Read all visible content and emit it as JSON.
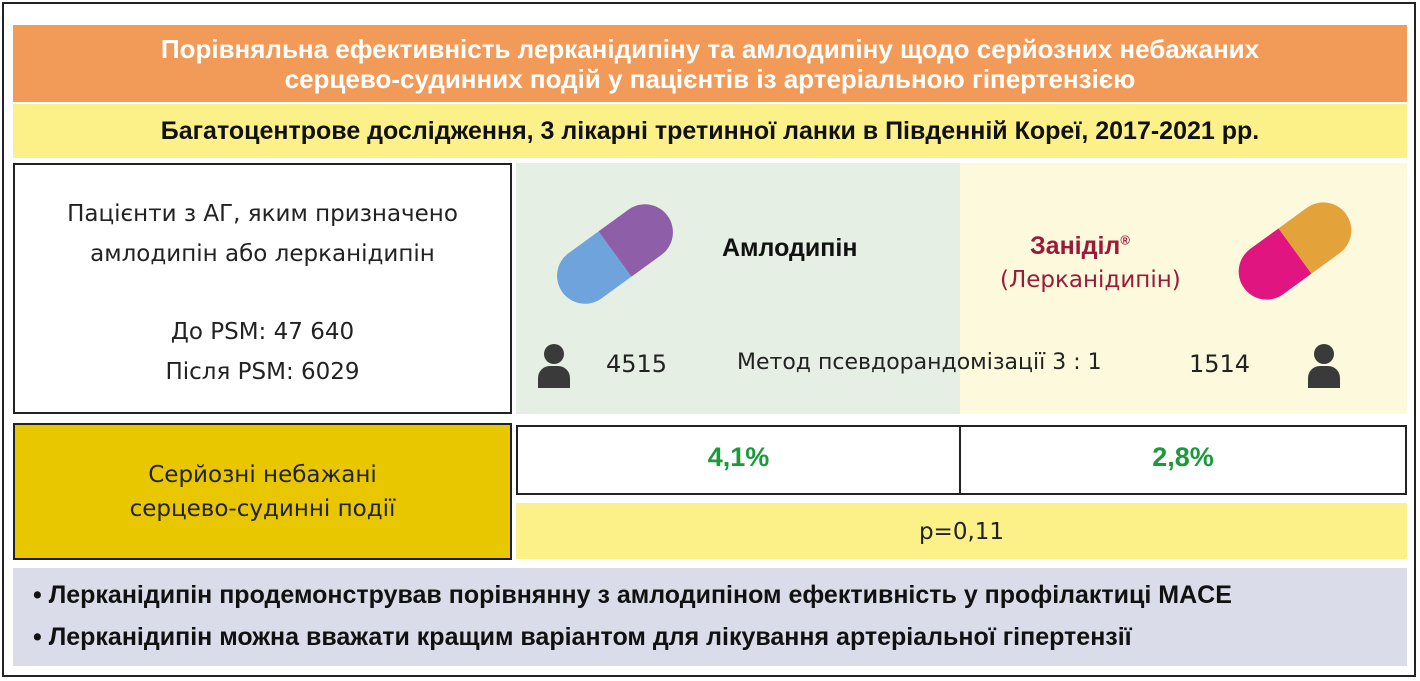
{
  "header": {
    "title_line1": "Порівняльна ефективність лерканідипіну та амлодипіну щодо серйозних небажаних",
    "title_line2": "серцево-судинних подій у пацієнтів із артеріальною гіпертензією",
    "subtitle": "Багатоцентрове дослідження, 3 лікарні третинної ланки в Південній Кореї, 2017-2021 рр."
  },
  "patients": {
    "line1": "Пацієнти з АГ, яким призначено",
    "line2": "амлодипін або лерканідипін",
    "before_psm": "До PSM: 47 640",
    "after_psm": "Після PSM: 6029"
  },
  "drug_a": {
    "name": "Амлодипін",
    "count": "4515",
    "result": "4,1%",
    "icon": "capsule-icon",
    "colors": {
      "cap": "#8e5ea8",
      "body": "#6fa3db"
    }
  },
  "drug_b": {
    "name": "Заніділ",
    "trademark": "®",
    "generic": "(Лерканідипін)",
    "count": "1514",
    "result": "2,8%",
    "icon": "capsule-icon",
    "colors": {
      "cap": "#e4a23a",
      "body": "#e0157f"
    }
  },
  "method": "Метод псевдорандомізації 3 : 1",
  "events_label_line1": "Серйозні небажані",
  "events_label_line2": "серцево-судинні події",
  "p_value": "p=0,11",
  "conclusions": [
    "• Лерканідипін продемонстрував порівнянну з амлодипіном ефективність у профілактиці MACE",
    "• Лерканідипін можна вважати кращим варіантом для лікування артеріальної гіпертензії"
  ],
  "colors": {
    "title_bg": "#f29a57",
    "subtitle_bg": "#fbf188",
    "events_bg": "#e8c700",
    "result_text": "#1a9a3a",
    "brand_text": "#9b1a3a",
    "conclusion_bg": "#dadde9"
  }
}
